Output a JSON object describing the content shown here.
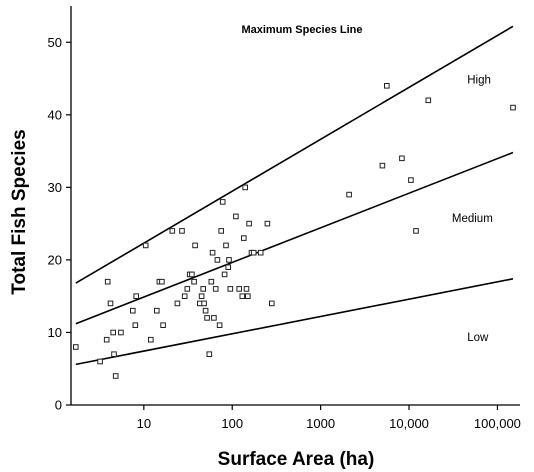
{
  "chart_data": {
    "type": "scatter",
    "title": "Maximum Species Line",
    "xlabel": "Surface Area (ha)",
    "ylabel": "Total Fish Species",
    "xscale": "log",
    "xlim": [
      1.5,
      180000
    ],
    "ylim": [
      0,
      55
    ],
    "x_ticks": [
      {
        "value": 10,
        "label": "10"
      },
      {
        "value": 100,
        "label": "100"
      },
      {
        "value": 1000,
        "label": "1000"
      },
      {
        "value": 10000,
        "label": "10,000"
      },
      {
        "value": 100000,
        "label": "100,000"
      }
    ],
    "y_ticks": [
      {
        "value": 0,
        "label": "0"
      },
      {
        "value": 10,
        "label": "10"
      },
      {
        "value": 20,
        "label": "20"
      },
      {
        "value": 30,
        "label": "30"
      },
      {
        "value": 40,
        "label": "40"
      },
      {
        "value": 50,
        "label": "50"
      }
    ],
    "grid": false,
    "lines": [
      {
        "x": [
          1.7,
          150000
        ],
        "y": [
          16.8,
          52.2
        ]
      },
      {
        "x": [
          1.7,
          150000
        ],
        "y": [
          11.2,
          34.8
        ]
      },
      {
        "x": [
          1.7,
          150000
        ],
        "y": [
          5.6,
          17.4
        ]
      }
    ],
    "annotations": [
      {
        "text": "High",
        "x": 62000,
        "y": 44.3
      },
      {
        "text": "Medium",
        "x": 52000,
        "y": 25.2
      },
      {
        "text": "Low",
        "x": 60000,
        "y": 8.8
      }
    ],
    "points": [
      {
        "x": 1.7,
        "y": 8
      },
      {
        "x": 3.2,
        "y": 6
      },
      {
        "x": 3.8,
        "y": 9
      },
      {
        "x": 3.9,
        "y": 17
      },
      {
        "x": 4.2,
        "y": 14
      },
      {
        "x": 4.5,
        "y": 10
      },
      {
        "x": 4.6,
        "y": 7
      },
      {
        "x": 4.8,
        "y": 4
      },
      {
        "x": 5.5,
        "y": 10
      },
      {
        "x": 7.5,
        "y": 13
      },
      {
        "x": 8,
        "y": 11
      },
      {
        "x": 8.2,
        "y": 15
      },
      {
        "x": 10.5,
        "y": 22
      },
      {
        "x": 12,
        "y": 9
      },
      {
        "x": 14,
        "y": 13
      },
      {
        "x": 15,
        "y": 17
      },
      {
        "x": 16,
        "y": 17
      },
      {
        "x": 16.5,
        "y": 11
      },
      {
        "x": 21,
        "y": 24
      },
      {
        "x": 24,
        "y": 14
      },
      {
        "x": 27,
        "y": 24
      },
      {
        "x": 29,
        "y": 15
      },
      {
        "x": 31,
        "y": 16
      },
      {
        "x": 33,
        "y": 18
      },
      {
        "x": 35,
        "y": 18
      },
      {
        "x": 37,
        "y": 17
      },
      {
        "x": 38,
        "y": 22
      },
      {
        "x": 43,
        "y": 14
      },
      {
        "x": 45,
        "y": 15
      },
      {
        "x": 47,
        "y": 16
      },
      {
        "x": 48,
        "y": 14
      },
      {
        "x": 50,
        "y": 13
      },
      {
        "x": 52,
        "y": 12
      },
      {
        "x": 55,
        "y": 7
      },
      {
        "x": 58,
        "y": 17
      },
      {
        "x": 60,
        "y": 21
      },
      {
        "x": 62,
        "y": 12
      },
      {
        "x": 65,
        "y": 16
      },
      {
        "x": 68,
        "y": 20
      },
      {
        "x": 72,
        "y": 11
      },
      {
        "x": 75,
        "y": 24
      },
      {
        "x": 78,
        "y": 28
      },
      {
        "x": 82,
        "y": 18
      },
      {
        "x": 85,
        "y": 22
      },
      {
        "x": 90,
        "y": 19
      },
      {
        "x": 92,
        "y": 20
      },
      {
        "x": 95,
        "y": 16
      },
      {
        "x": 110,
        "y": 26
      },
      {
        "x": 120,
        "y": 16
      },
      {
        "x": 130,
        "y": 15
      },
      {
        "x": 135,
        "y": 23
      },
      {
        "x": 140,
        "y": 30
      },
      {
        "x": 145,
        "y": 16
      },
      {
        "x": 150,
        "y": 15
      },
      {
        "x": 155,
        "y": 25
      },
      {
        "x": 165,
        "y": 21
      },
      {
        "x": 175,
        "y": 21
      },
      {
        "x": 210,
        "y": 21
      },
      {
        "x": 250,
        "y": 25
      },
      {
        "x": 280,
        "y": 14
      },
      {
        "x": 2100,
        "y": 29
      },
      {
        "x": 5000,
        "y": 33
      },
      {
        "x": 5600,
        "y": 44
      },
      {
        "x": 8300,
        "y": 34
      },
      {
        "x": 10500,
        "y": 31
      },
      {
        "x": 12000,
        "y": 24
      },
      {
        "x": 16500,
        "y": 42
      },
      {
        "x": 150000,
        "y": 41
      }
    ]
  }
}
